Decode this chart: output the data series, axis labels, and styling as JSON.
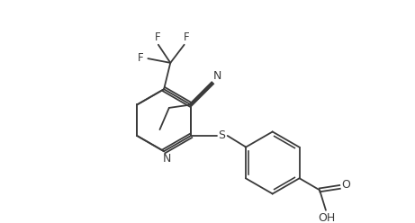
{
  "bg_color": "#ffffff",
  "line_color": "#3a3a3a",
  "label_color": "#3a3a3a",
  "figsize": [
    4.61,
    2.48
  ],
  "dpi": 100,
  "lw": 1.3,
  "xlim": [
    0,
    9.22
  ],
  "ylim": [
    0,
    4.96
  ]
}
